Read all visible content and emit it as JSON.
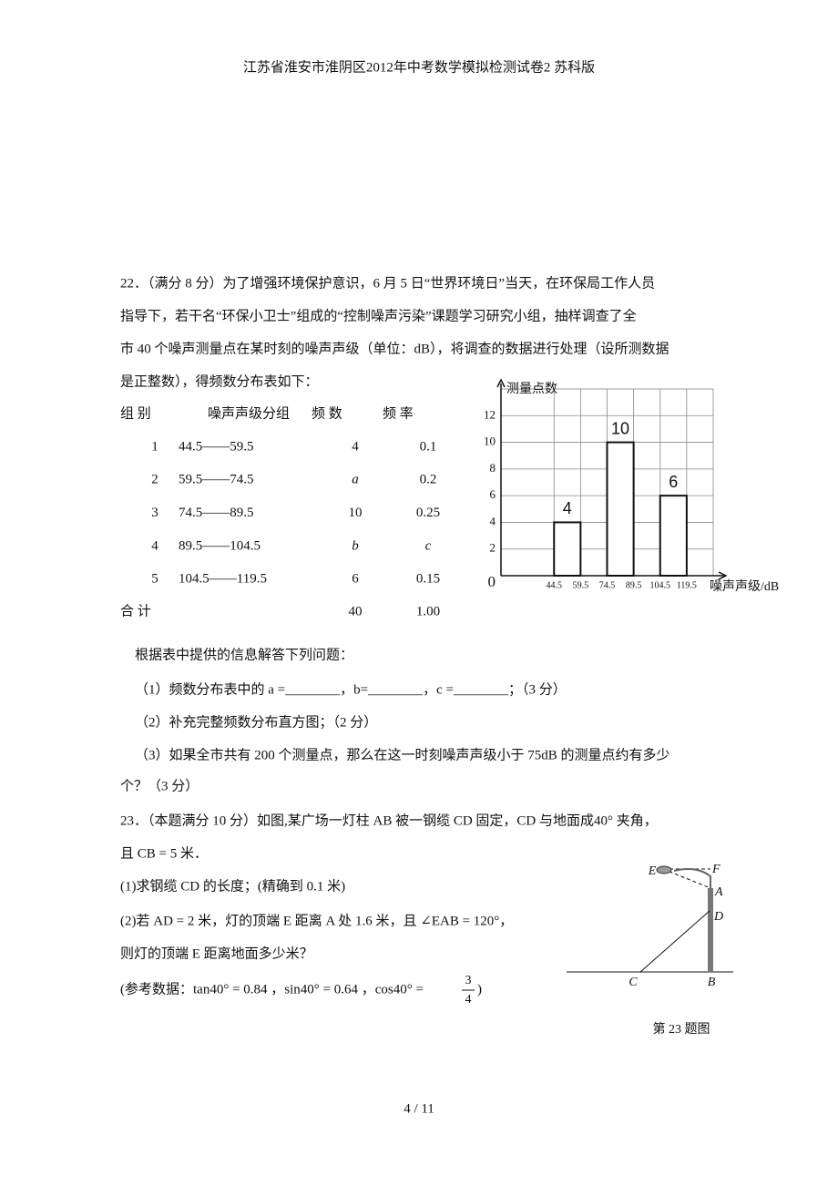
{
  "header": {
    "title": "江苏省淮安市淮阴区2012年中考数学模拟检测试卷2 苏科版"
  },
  "problem_22": {
    "intro": [
      "22．（满分 8 分）为了增强环境保护意识，6 月 5 日“世界环境日”当天，在环保局工作人员",
      "指导下，若干名“环保小卫士”组成的“控制噪声污染”课题学习研究小组，抽样调查了全",
      "市 40 个噪声测量点在某时刻的噪声声级（单位：dB），将调查的数据进行处理（设所测数据",
      "是正整数），得频数分布表如下："
    ],
    "table": {
      "header": [
        "组 别",
        "噪声声级分组",
        "频 数",
        "频 率"
      ],
      "rows": [
        [
          "1",
          "44.5——59.5",
          "4",
          "0.1"
        ],
        [
          "2",
          "59.5——74.5",
          "a",
          "0.2"
        ],
        [
          "3",
          "74.5——89.5",
          "10",
          "0.25"
        ],
        [
          "4",
          "89.5——104.5",
          "b",
          "c"
        ],
        [
          "5",
          "104.5——119.5",
          "6",
          "0.15"
        ]
      ],
      "total": [
        "合 计",
        "40",
        "1.00"
      ]
    },
    "prompt": "根据表中提供的信息解答下列问题：",
    "questions": [
      "（1）频数分布表中的 a =________，b=________，c =________；（3 分）",
      "（2）补充完整频数分布直方图；（2 分）",
      "（3）如果全市共有 200 个测量点，那么在这一时刻噪声声级小于 75dB 的测量点约有多少",
      "个？（3 分）"
    ]
  },
  "chart_data": {
    "type": "histogram",
    "y_label": "测量点数",
    "x_label": "噪声声级/dB",
    "bins": [
      44.5,
      59.5,
      74.5,
      89.5,
      104.5,
      119.5
    ],
    "values": [
      4,
      null,
      10,
      null,
      6
    ],
    "color": "#ffffff",
    "xlim": [
      14.5,
      134.5
    ],
    "ylim": [
      0,
      14
    ],
    "yticks": [
      0,
      2,
      4,
      6,
      8,
      10,
      12
    ],
    "grid": true
  },
  "problem_23": {
    "lines": [
      "23．（本题满分 10 分）如图,某广场一灯柱 AB 被一钢缆 CD 固定，CD 与地面成40° 夹角，",
      "且 CB = 5 米．",
      "(1)求钢缆 CD 的长度；(精确到 0.1 米)",
      "(2)若 AD = 2 米，灯的顶端 E 距离 A 处 1.6 米，且 ∠EAB = 120°，",
      "则灯的顶端 E 距离地面多少米？"
    ],
    "reference": {
      "text": "(参考数据：tan40° = 0.84 ，sin40° = 0.64 ，cos40° =",
      "numerator": "3",
      "denominator": "4",
      "close": ")"
    },
    "figure": {
      "labels": [
        "E",
        "F",
        "A",
        "D",
        "C",
        "B"
      ],
      "caption": "第 23 题图"
    }
  },
  "footer": {
    "page": "4 / 11"
  }
}
